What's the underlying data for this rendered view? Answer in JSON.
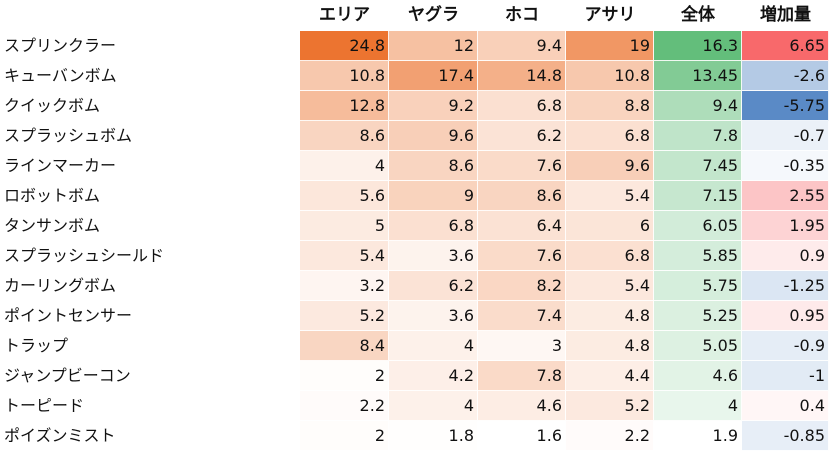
{
  "table": {
    "headers": [
      "エリア",
      "ヤグラ",
      "ホコ",
      "アサリ",
      "全体",
      "増加量"
    ],
    "rows": [
      {
        "name": "スプリンクラー",
        "values": [
          "24.8",
          "12",
          "9.4",
          "19",
          "16.3",
          "6.65"
        ]
      },
      {
        "name": "キューバンボム",
        "values": [
          "10.8",
          "17.4",
          "14.8",
          "10.8",
          "13.45",
          "-2.6"
        ]
      },
      {
        "name": "クイックボム",
        "values": [
          "12.8",
          "9.2",
          "6.8",
          "8.8",
          "9.4",
          "-5.75"
        ]
      },
      {
        "name": "スプラッシュボム",
        "values": [
          "8.6",
          "9.6",
          "6.2",
          "6.8",
          "7.8",
          "-0.7"
        ]
      },
      {
        "name": "ラインマーカー",
        "values": [
          "4",
          "8.6",
          "7.6",
          "9.6",
          "7.45",
          "-0.35"
        ]
      },
      {
        "name": "ロボットボム",
        "values": [
          "5.6",
          "9",
          "8.6",
          "5.4",
          "7.15",
          "2.55"
        ]
      },
      {
        "name": "タンサンボム",
        "values": [
          "5",
          "6.8",
          "6.4",
          "6",
          "6.05",
          "1.95"
        ]
      },
      {
        "name": "スプラッシュシールド",
        "values": [
          "5.4",
          "3.6",
          "7.6",
          "6.8",
          "5.85",
          "0.9"
        ]
      },
      {
        "name": "カーリングボム",
        "values": [
          "3.2",
          "6.2",
          "8.2",
          "5.4",
          "5.75",
          "-1.25"
        ]
      },
      {
        "name": "ポイントセンサー",
        "values": [
          "5.2",
          "3.6",
          "7.4",
          "4.8",
          "5.25",
          "0.95"
        ]
      },
      {
        "name": "トラップ",
        "values": [
          "8.4",
          "4",
          "3",
          "4.8",
          "5.05",
          "-0.9"
        ]
      },
      {
        "name": "ジャンプビーコン",
        "values": [
          "2",
          "4.2",
          "7.8",
          "4.4",
          "4.6",
          "-1"
        ]
      },
      {
        "name": "トーピード",
        "values": [
          "2.2",
          "4",
          "4.6",
          "5.2",
          "4",
          "0.4"
        ]
      },
      {
        "name": "ポイズンミスト",
        "values": [
          "2",
          "1.8",
          "1.6",
          "2.2",
          "1.9",
          "-0.85"
        ]
      }
    ]
  },
  "colors": {
    "mode_scale_max": "#ec7430",
    "mode_scale_min": "#ffffff",
    "total_scale_max": "#63be7b",
    "total_scale_min": "#ffffff",
    "increase_positive": "#f8696b",
    "increase_negative": "#5a8ac6",
    "increase_neutral": "#ffffff"
  }
}
